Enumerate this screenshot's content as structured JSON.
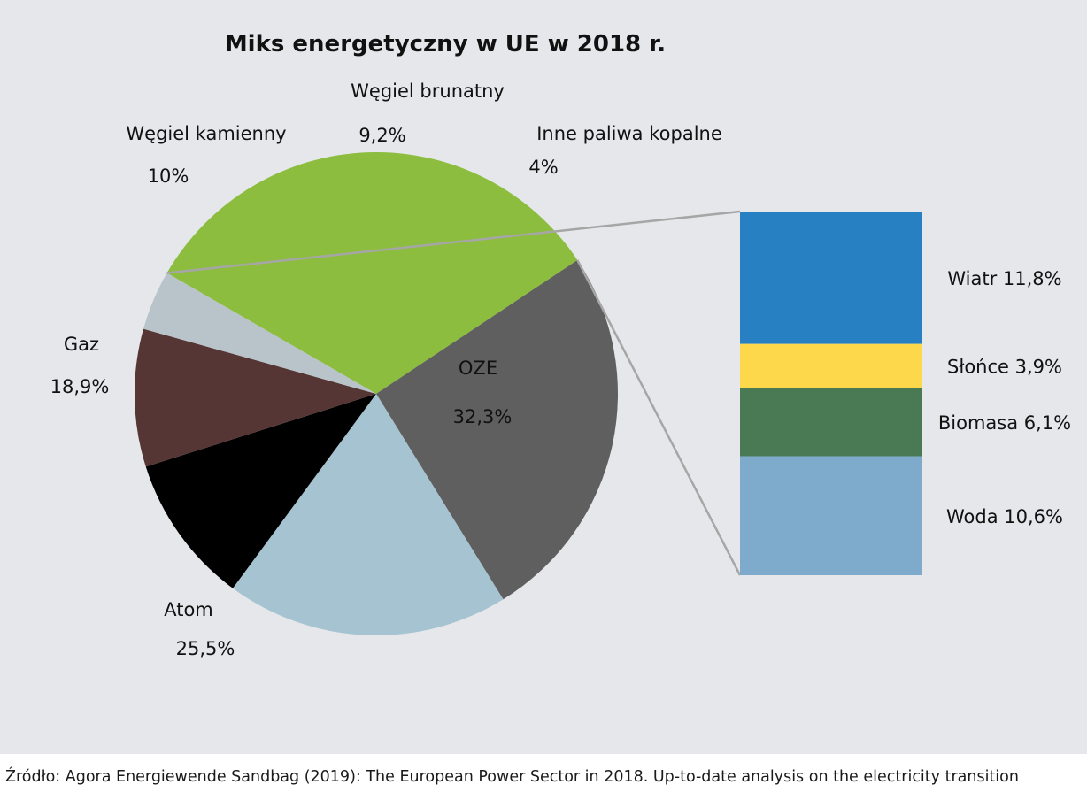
{
  "chart_data": {
    "type": "bar-of-pie",
    "title": "Miks energetyczny w UE w 2018 r.",
    "pie": {
      "slices": [
        {
          "label": "OZE",
          "value_label": "32,3%",
          "value": 32.3,
          "color": "#8cbd3f"
        },
        {
          "label": "Atom",
          "value_label": "25,5%",
          "value": 25.5,
          "color": "#5f5f5f"
        },
        {
          "label": "Gaz",
          "value_label": "18,9%",
          "value": 18.9,
          "color": "#a6c3d1"
        },
        {
          "label": "Węgiel kamienny",
          "value_label": "10%",
          "value": 10.0,
          "color": "#000000"
        },
        {
          "label": "Węgiel brunatny",
          "value_label": "9,2%",
          "value": 9.2,
          "color": "#553634"
        },
        {
          "label": "Inne paliwa kopalne",
          "value_label": "4%",
          "value": 4.0,
          "color": "#b8c4ca"
        }
      ]
    },
    "breakdown_of": "OZE",
    "bar": {
      "segments": [
        {
          "label": "Wiatr 11,8%",
          "value": 11.8,
          "color": "#2680c2"
        },
        {
          "label": "Słońce 3,9%",
          "value": 3.9,
          "color": "#fdd84a"
        },
        {
          "label": "Biomasa 6,1%",
          "value": 6.1,
          "color": "#497a53"
        },
        {
          "label": "Woda 10,6%",
          "value": 10.6,
          "color": "#7eaacb"
        }
      ]
    }
  },
  "source": "Źródło: Agora Energiewende Sandbag (2019): The European Power Sector in 2018. Up-to-date analysis on the electricity transition",
  "colors": {
    "panel_background": "#e5e7ea",
    "connector": "#a6a6a6"
  }
}
